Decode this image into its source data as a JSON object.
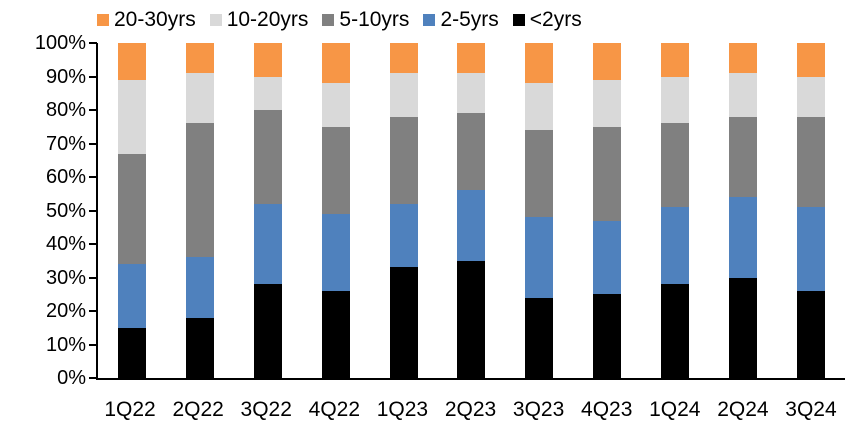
{
  "legend": {
    "items": [
      {
        "label": "20-30yrs",
        "color": "#F79646"
      },
      {
        "label": "10-20yrs",
        "color": "#D9D9D9"
      },
      {
        "label": "5-10yrs",
        "color": "#808080"
      },
      {
        "label": "2-5yrs",
        "color": "#4F81BD"
      },
      {
        "label": "<2yrs",
        "color": "#000000"
      }
    ]
  },
  "y_axis": {
    "tick_labels": [
      "100%",
      "90%",
      "80%",
      "70%",
      "60%",
      "50%",
      "40%",
      "30%",
      "20%",
      "10%",
      "0%"
    ]
  },
  "chart_data": {
    "type": "bar",
    "subtype": "stacked-100",
    "title": "",
    "xlabel": "",
    "ylabel": "",
    "ylim": [
      0,
      100
    ],
    "ytick_step": 10,
    "grid": false,
    "legend_position": "top",
    "categories": [
      "1Q22",
      "2Q22",
      "3Q22",
      "4Q22",
      "1Q23",
      "2Q23",
      "3Q23",
      "4Q23",
      "1Q24",
      "2Q24",
      "3Q24"
    ],
    "series": [
      {
        "name": "<2yrs",
        "color": "#000000",
        "values": [
          15,
          18,
          28,
          26,
          33,
          35,
          24,
          25,
          28,
          30,
          26
        ]
      },
      {
        "name": "2-5yrs",
        "color": "#4F81BD",
        "values": [
          19,
          18,
          24,
          23,
          19,
          21,
          24,
          22,
          23,
          24,
          25
        ]
      },
      {
        "name": "5-10yrs",
        "color": "#808080",
        "values": [
          33,
          40,
          28,
          26,
          26,
          23,
          26,
          28,
          25,
          24,
          27
        ]
      },
      {
        "name": "10-20yrs",
        "color": "#D9D9D9",
        "values": [
          22,
          15,
          10,
          13,
          13,
          12,
          14,
          14,
          14,
          13,
          12
        ]
      },
      {
        "name": "20-30yrs",
        "color": "#F79646",
        "values": [
          11,
          9,
          10,
          12,
          9,
          9,
          12,
          11,
          10,
          9,
          10
        ]
      }
    ],
    "axis_color": "#000000",
    "background_color": "#FFFFFF"
  }
}
